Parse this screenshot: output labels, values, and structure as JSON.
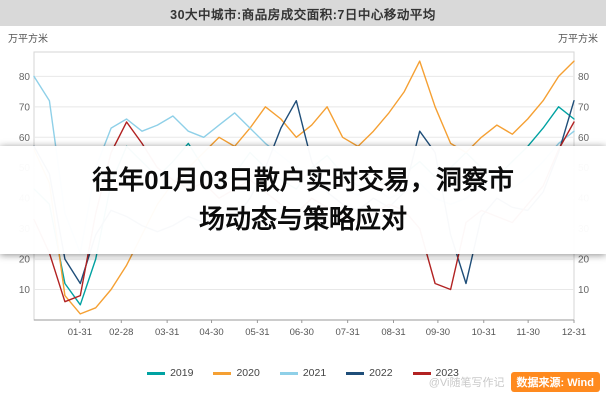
{
  "header": {
    "title": "30大中城市:商品房成交面积:7日中心移动平均"
  },
  "overlay": {
    "line1": "往年01月03日散户实时交易，洞察市",
    "line2": "场动态与策略应对"
  },
  "axis_units": {
    "left": "万平方米",
    "right": "万平方米"
  },
  "watermark": {
    "text": "@Vi随笔写作记",
    "source_badge": "数据来源: Wind"
  },
  "colors": {
    "header_bg": "#d9d9d9",
    "grid": "#e8e8e8",
    "axis": "#999999",
    "overlay_bg": "#ffffff",
    "badge_bg": "#ff8a1e"
  },
  "chart_data": {
    "type": "line",
    "title": "30大中城市:商品房成交面积:7日中心移动平均",
    "ylabel": "万平方米",
    "ylim": [
      0,
      88
    ],
    "yticks": [
      10,
      20,
      30,
      40,
      50,
      60,
      70,
      80
    ],
    "grid": true,
    "legend_position": "bottom",
    "x_tick_labels": [
      "01-31",
      "02-28",
      "03-31",
      "04-30",
      "05-31",
      "06-30",
      "07-31",
      "08-31",
      "09-30",
      "10-31",
      "11-30",
      "12-31"
    ],
    "x_tick_days": [
      31,
      59,
      90,
      120,
      151,
      181,
      212,
      243,
      273,
      304,
      334,
      365
    ],
    "x_days_span": 365,
    "series": [
      {
        "name": "2019",
        "color": "#00a2a2",
        "values": [
          43,
          38,
          12,
          5,
          20,
          45,
          57,
          52,
          47,
          52,
          58,
          50,
          44,
          48,
          55,
          50,
          46,
          43,
          50,
          54,
          48,
          44,
          46,
          44,
          48,
          52,
          47,
          50,
          55,
          50,
          47,
          52,
          57,
          63,
          70,
          66
        ]
      },
      {
        "name": "2020",
        "color": "#f5a033",
        "values": [
          56,
          45,
          8,
          2,
          4,
          10,
          18,
          28,
          38,
          45,
          50,
          55,
          60,
          57,
          63,
          70,
          66,
          60,
          64,
          70,
          60,
          57,
          62,
          68,
          75,
          85,
          70,
          58,
          55,
          60,
          64,
          61,
          66,
          72,
          80,
          85
        ]
      },
      {
        "name": "2021",
        "color": "#8fd0e8",
        "values": [
          80,
          72,
          35,
          22,
          50,
          63,
          66,
          62,
          64,
          67,
          62,
          60,
          64,
          68,
          63,
          58,
          54,
          50,
          48,
          45,
          43,
          41,
          44,
          40,
          42,
          45,
          40,
          38,
          40,
          44,
          46,
          43,
          47,
          52,
          58,
          62
        ]
      },
      {
        "name": "2022",
        "color": "#1f4e79",
        "values": [
          57,
          48,
          20,
          12,
          28,
          36,
          34,
          31,
          29,
          31,
          34,
          32,
          29,
          33,
          40,
          50,
          63,
          72,
          52,
          42,
          38,
          36,
          40,
          37,
          42,
          62,
          55,
          28,
          12,
          34,
          40,
          37,
          36,
          42,
          55,
          72
        ]
      },
      {
        "name": "2023",
        "color": "#b22222",
        "values": [
          33,
          22,
          6,
          8,
          35,
          55,
          65,
          58,
          50,
          46,
          43,
          45,
          40,
          43,
          46,
          42,
          38,
          35,
          40,
          37,
          34,
          32,
          35,
          38,
          36,
          30,
          12,
          10,
          32,
          36,
          34,
          32,
          38,
          44,
          56,
          65
        ]
      }
    ]
  }
}
